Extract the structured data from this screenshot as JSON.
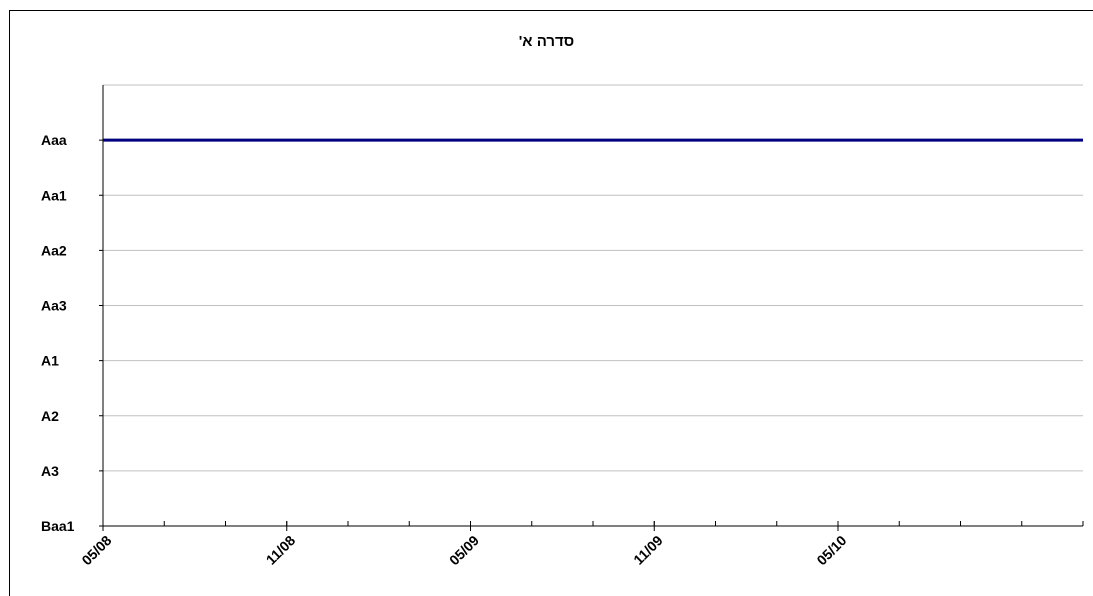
{
  "chart_data": {
    "type": "line",
    "title": "סדרה א'",
    "xlabel": "",
    "ylabel": "",
    "x_ticks": [
      "05/08",
      "11/08",
      "05/09",
      "11/09",
      "05/10"
    ],
    "x_range": [
      "2008-05",
      "2011-01"
    ],
    "y_categories": [
      "Baa1",
      "A3",
      "A2",
      "A1",
      "Aa3",
      "Aa2",
      "Aa1",
      "Aaa"
    ],
    "grid": true,
    "legend": "none",
    "series": [
      {
        "color": "#000080",
        "x": [
          "2008-05",
          "2011-01"
        ],
        "y": [
          "Aaa",
          "Aaa"
        ]
      }
    ]
  }
}
